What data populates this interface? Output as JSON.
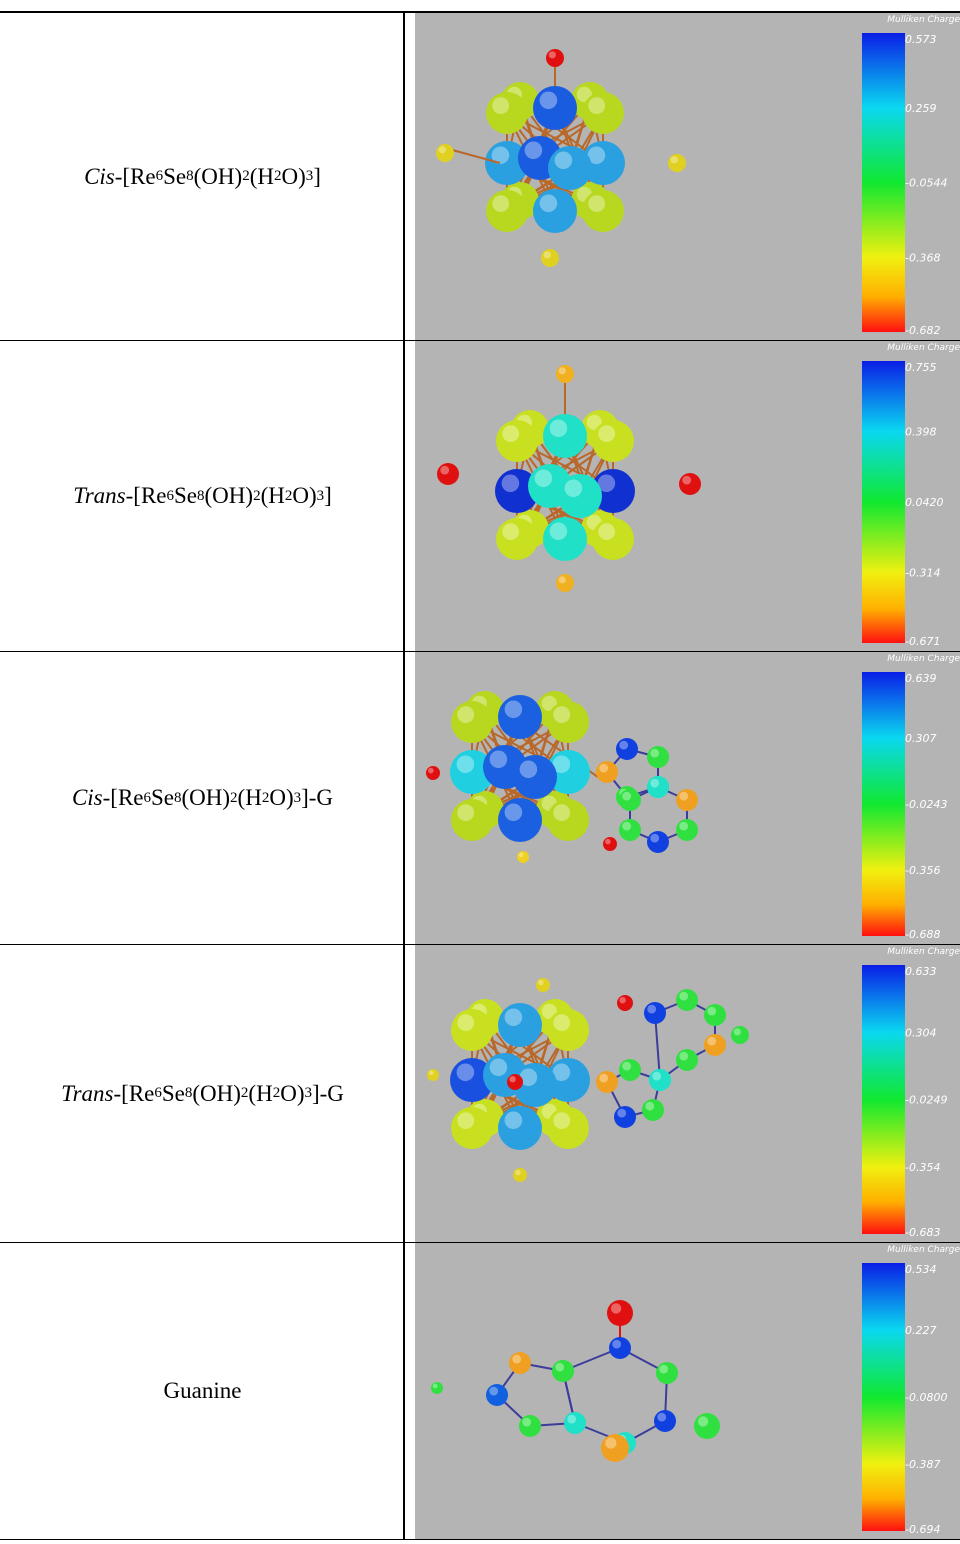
{
  "rows": [
    {
      "label": [
        {
          "i": "Cis"
        },
        "-[Re",
        {
          "sub": "6"
        },
        "Se",
        {
          "sub": "8"
        },
        "(OH)",
        {
          "sub": "2"
        },
        "(H",
        {
          "sub": "2"
        },
        "O)",
        {
          "sub": "3"
        },
        "]"
      ],
      "colorbar": {
        "title": "Mulliken Charge",
        "ticks": [
          "0.573",
          "0.259",
          "-0.0544",
          "-0.368",
          "-0.682"
        ]
      }
    },
    {
      "label": [
        {
          "i": "Trans"
        },
        "-[Re",
        {
          "sub": "6"
        },
        "Se",
        {
          "sub": "8"
        },
        "(OH)",
        {
          "sub": "2"
        },
        "(H",
        {
          "sub": "2"
        },
        "O)",
        {
          "sub": "3"
        },
        "]"
      ],
      "colorbar": {
        "title": "Mulliken Charge",
        "ticks": [
          "0.755",
          "0.398",
          "0.0420",
          "-0.314",
          "-0.671"
        ]
      }
    },
    {
      "label": [
        {
          "i": "Cis"
        },
        "-[Re",
        {
          "sub": "6"
        },
        "Se",
        {
          "sub": "8"
        },
        "(OH)",
        {
          "sub": "2"
        },
        "(H",
        {
          "sub": "2"
        },
        "O)",
        {
          "sub": "3"
        },
        "]-G"
      ],
      "colorbar": {
        "title": "Mulliken Charge",
        "ticks": [
          "0.639",
          "0.307",
          "-0.0243",
          "-0.356",
          "-0.688"
        ]
      }
    },
    {
      "label": [
        {
          "i": "Trans"
        },
        "-[Re",
        {
          "sub": "6"
        },
        "Se",
        {
          "sub": "8"
        },
        "(OH)",
        {
          "sub": "2"
        },
        "(H",
        {
          "sub": "2"
        },
        "O)",
        {
          "sub": "3"
        },
        "]-G"
      ],
      "colorbar": {
        "title": "Mulliken Charge",
        "ticks": [
          "0.633",
          "0.304",
          "-0.0249",
          "-0.354",
          "-0.683"
        ]
      }
    },
    {
      "label": [
        "Guanine"
      ],
      "colorbar": {
        "title": "Mulliken Charge",
        "ticks": [
          "0.534",
          "0.227",
          "-0.0800",
          "-0.387",
          "-0.694"
        ]
      }
    }
  ]
}
